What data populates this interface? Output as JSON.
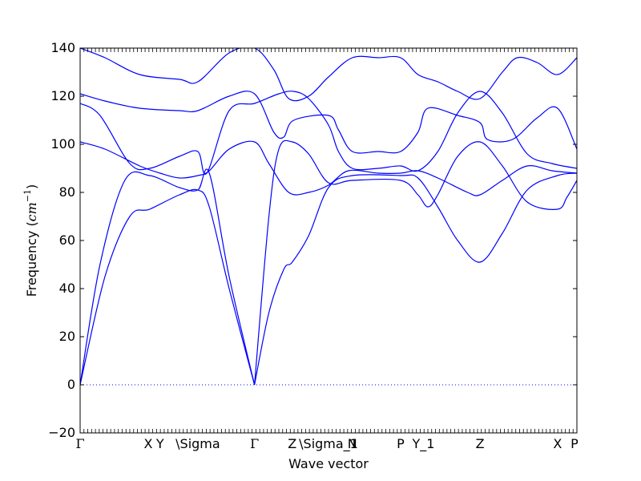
{
  "chart_data": {
    "type": "line",
    "title": "",
    "xlabel": "Wave vector",
    "ylabel": "Frequency (cm⁻¹)",
    "ylabel_main": "Frequency (",
    "ylabel_unit": "cm",
    "ylabel_exp": "−1",
    "ylabel_close": ")",
    "ylim": [
      -20,
      140
    ],
    "yticks": [
      -20,
      0,
      20,
      40,
      60,
      80,
      100,
      120,
      140
    ],
    "xlim": [
      0,
      1
    ],
    "grid": false,
    "line_color": "#0000ff",
    "zero_line_color": "#0000ff",
    "x_ticks": [
      {
        "label": "Γ",
        "x": 0.0
      },
      {
        "label": "X",
        "x": 0.137
      },
      {
        "label": "Y",
        "x": 0.161
      },
      {
        "label": "\\Sigma",
        "x": 0.237
      },
      {
        "label": "Γ",
        "x": 0.351
      },
      {
        "label": "Z",
        "x": 0.427
      },
      {
        "label": "\\Sigma_1",
        "x": 0.5
      },
      {
        "label": "N",
        "x": 0.548
      },
      {
        "label": "P",
        "x": 0.645
      },
      {
        "label": "Y_1",
        "x": 0.691
      },
      {
        "label": "Z",
        "x": 0.805
      },
      {
        "label": "X",
        "x": 0.961
      },
      {
        "label": "P",
        "x": 0.995
      }
    ],
    "series": [
      {
        "values": [
          [
            0,
            0
          ],
          [
            0.05,
            45
          ],
          [
            0.1,
            70
          ],
          [
            0.14,
            73
          ],
          [
            0.2,
            79
          ],
          [
            0.237,
            81
          ],
          [
            0.26,
            74
          ],
          [
            0.3,
            40
          ],
          [
            0.351,
            0
          ]
        ]
      },
      {
        "values": [
          [
            0,
            0
          ],
          [
            0.04,
            50
          ],
          [
            0.09,
            85
          ],
          [
            0.14,
            87
          ],
          [
            0.2,
            82
          ],
          [
            0.237,
            81
          ],
          [
            0.26,
            88
          ],
          [
            0.3,
            45
          ],
          [
            0.351,
            0
          ]
        ]
      },
      {
        "values": [
          [
            0,
            101
          ],
          [
            0.05,
            98
          ],
          [
            0.12,
            91
          ],
          [
            0.161,
            88
          ],
          [
            0.2,
            86
          ],
          [
            0.237,
            87
          ],
          [
            0.26,
            89
          ],
          [
            0.3,
            98
          ],
          [
            0.351,
            101
          ],
          [
            0.38,
            92
          ],
          [
            0.42,
            80
          ],
          [
            0.46,
            80
          ],
          [
            0.5,
            83
          ],
          [
            0.54,
            89
          ],
          [
            0.6,
            88
          ],
          [
            0.645,
            88
          ],
          [
            0.68,
            89
          ],
          [
            0.72,
            86
          ],
          [
            0.78,
            80
          ],
          [
            0.805,
            79
          ],
          [
            0.85,
            85
          ],
          [
            0.9,
            91
          ],
          [
            0.95,
            89
          ],
          [
            1.0,
            88
          ]
        ]
      },
      {
        "values": [
          [
            0,
            117
          ],
          [
            0.04,
            112
          ],
          [
            0.1,
            92
          ],
          [
            0.14,
            90
          ],
          [
            0.2,
            95
          ],
          [
            0.237,
            97
          ],
          [
            0.255,
            88
          ],
          [
            0.3,
            114
          ],
          [
            0.351,
            117
          ],
          [
            0.4,
            121
          ],
          [
            0.43,
            122
          ],
          [
            0.46,
            119
          ],
          [
            0.5,
            108
          ],
          [
            0.52,
            97
          ],
          [
            0.548,
            90
          ],
          [
            0.6,
            90
          ],
          [
            0.645,
            91
          ],
          [
            0.68,
            89
          ],
          [
            0.72,
            97
          ],
          [
            0.76,
            113
          ],
          [
            0.805,
            122
          ],
          [
            0.85,
            113
          ],
          [
            0.9,
            96
          ],
          [
            0.95,
            92
          ],
          [
            1.0,
            90
          ]
        ]
      },
      {
        "values": [
          [
            0,
            121
          ],
          [
            0.05,
            118
          ],
          [
            0.12,
            115
          ],
          [
            0.2,
            114
          ],
          [
            0.237,
            114
          ],
          [
            0.3,
            120
          ],
          [
            0.351,
            121
          ],
          [
            0.39,
            105
          ],
          [
            0.41,
            103
          ],
          [
            0.43,
            110
          ],
          [
            0.5,
            112
          ],
          [
            0.52,
            106
          ],
          [
            0.548,
            97
          ],
          [
            0.6,
            97
          ],
          [
            0.645,
            97
          ],
          [
            0.68,
            105
          ],
          [
            0.7,
            115
          ],
          [
            0.76,
            112
          ],
          [
            0.805,
            109
          ],
          [
            0.82,
            102
          ],
          [
            0.87,
            102
          ],
          [
            0.92,
            111
          ],
          [
            0.961,
            115
          ],
          [
            1.0,
            98
          ]
        ]
      },
      {
        "values": [
          [
            0,
            140
          ],
          [
            0.05,
            136
          ],
          [
            0.12,
            129
          ],
          [
            0.2,
            127
          ],
          [
            0.237,
            126
          ],
          [
            0.3,
            138
          ],
          [
            0.351,
            140
          ],
          [
            0.39,
            131
          ],
          [
            0.42,
            119
          ],
          [
            0.46,
            120
          ],
          [
            0.5,
            128
          ],
          [
            0.548,
            136
          ],
          [
            0.6,
            136
          ],
          [
            0.645,
            136
          ],
          [
            0.68,
            129
          ],
          [
            0.72,
            126
          ],
          [
            0.76,
            122
          ],
          [
            0.805,
            119
          ],
          [
            0.85,
            130
          ],
          [
            0.88,
            136
          ],
          [
            0.92,
            134
          ],
          [
            0.961,
            129
          ],
          [
            1.0,
            136
          ]
        ]
      },
      {
        "values": [
          [
            0.351,
            0
          ],
          [
            0.38,
            30
          ],
          [
            0.41,
            48
          ],
          [
            0.427,
            51
          ],
          [
            0.46,
            62
          ],
          [
            0.5,
            82
          ],
          [
            0.548,
            87
          ],
          [
            0.645,
            87
          ],
          [
            0.68,
            86
          ],
          [
            0.72,
            74
          ],
          [
            0.76,
            60
          ],
          [
            0.805,
            51
          ],
          [
            0.85,
            63
          ],
          [
            0.9,
            81
          ],
          [
            0.961,
            87
          ],
          [
            1.0,
            88
          ]
        ]
      },
      {
        "values": [
          [
            0.351,
            0
          ],
          [
            0.38,
            70
          ],
          [
            0.4,
            98
          ],
          [
            0.427,
            101
          ],
          [
            0.46,
            96
          ],
          [
            0.5,
            84
          ],
          [
            0.548,
            85
          ],
          [
            0.645,
            85
          ],
          [
            0.68,
            79
          ],
          [
            0.7,
            74
          ],
          [
            0.72,
            79
          ],
          [
            0.76,
            95
          ],
          [
            0.805,
            101
          ],
          [
            0.85,
            91
          ],
          [
            0.9,
            76
          ],
          [
            0.961,
            73
          ],
          [
            0.98,
            78
          ],
          [
            1.0,
            85
          ]
        ]
      }
    ]
  }
}
